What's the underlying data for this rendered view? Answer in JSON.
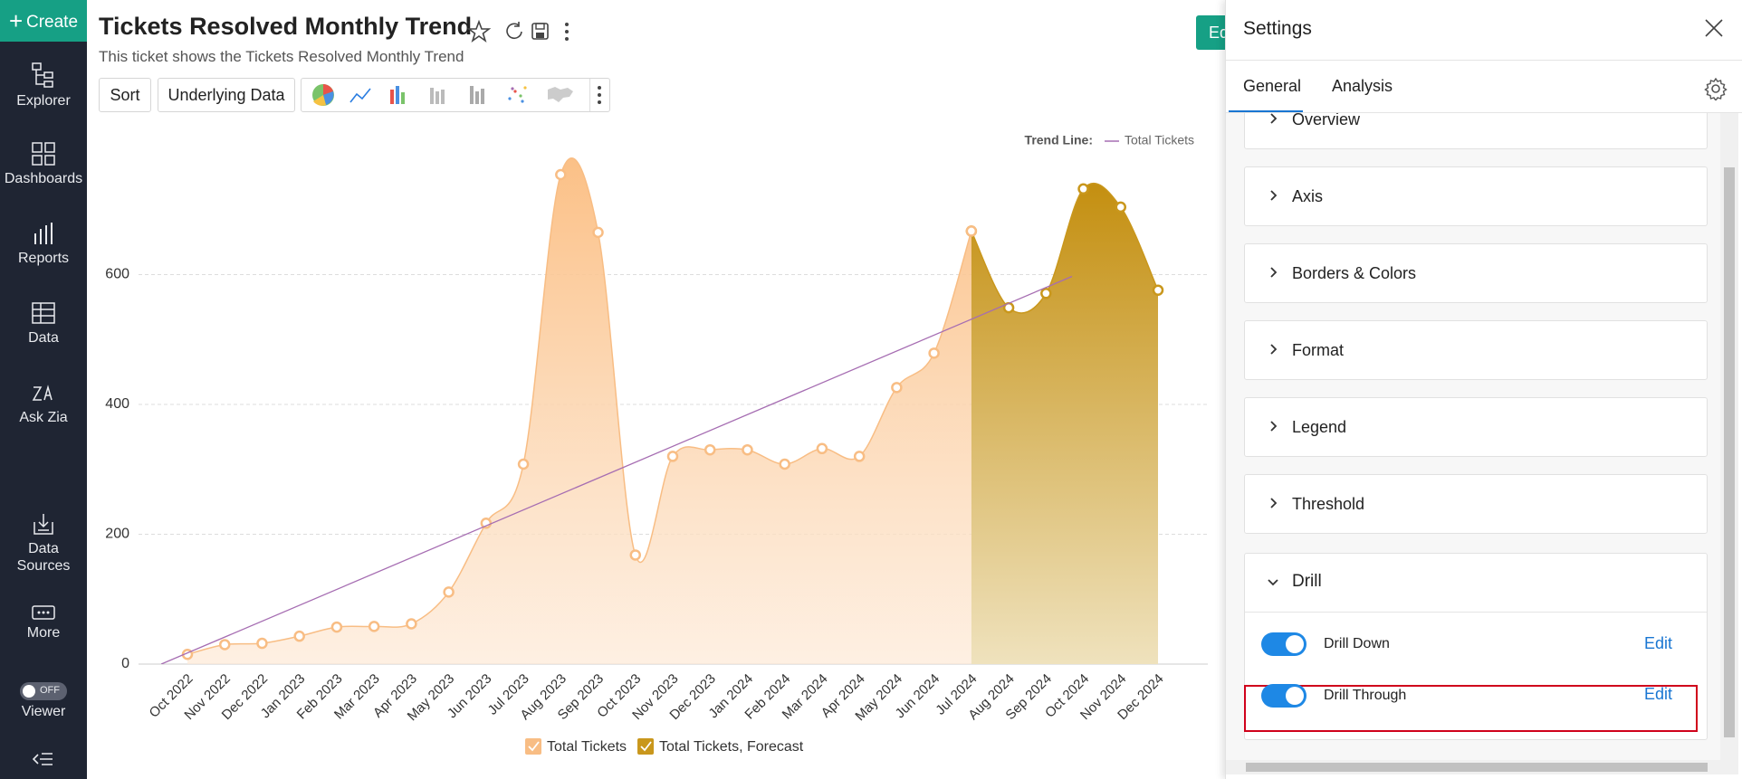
{
  "sidebar": {
    "create": "Create",
    "items": [
      "Explorer",
      "Dashboards",
      "Reports",
      "Data",
      "Ask Zia",
      "Data Sources",
      "More"
    ],
    "toggle": "OFF",
    "viewer": "Viewer"
  },
  "header": {
    "title": "Tickets Resolved Monthly Trend",
    "subtitle": "This ticket shows the Tickets Resolved Monthly Trend",
    "edit": "Ed"
  },
  "toolbar": {
    "sort": "Sort",
    "underlying": "Underlying Data"
  },
  "chart_data": {
    "type": "area",
    "categories": [
      "Oct 2022",
      "Nov 2022",
      "Dec 2022",
      "Jan 2023",
      "Feb 2023",
      "Mar 2023",
      "Apr 2023",
      "May 2023",
      "Jun 2023",
      "Jul 2023",
      "Aug 2023",
      "Sep 2023",
      "Oct 2023",
      "Nov 2023",
      "Dec 2023",
      "Jan 2024",
      "Feb 2024",
      "Mar 2024",
      "Apr 2024",
      "May 2024",
      "Jun 2024",
      "Jul 2024",
      "Aug 2024",
      "Sep 2024",
      "Oct 2024",
      "Nov 2024",
      "Dec 2024"
    ],
    "series": [
      {
        "name": "Total Tickets",
        "color": "#f8bd84",
        "values": [
          15,
          30,
          32,
          43,
          57,
          58,
          62,
          111,
          217,
          308,
          754,
          665,
          168,
          320,
          330,
          330,
          308,
          332,
          320,
          426,
          479,
          667,
          null,
          null,
          null,
          null,
          null
        ]
      },
      {
        "name": "Total Tickets, Forecast",
        "color": "#c9971c",
        "values": [
          null,
          null,
          null,
          null,
          null,
          null,
          null,
          null,
          null,
          null,
          null,
          null,
          null,
          null,
          null,
          null,
          null,
          null,
          null,
          null,
          null,
          667,
          549,
          571,
          732,
          704,
          576
        ]
      }
    ],
    "ylim": [
      0,
      800
    ],
    "yticks": [
      0,
      200,
      400,
      600
    ],
    "grid": true,
    "trend_line": {
      "label": "Trend Line:",
      "name": "Total Tickets",
      "color": "#a66db2"
    }
  },
  "settings": {
    "title": "Settings",
    "tabs": [
      "General",
      "Analysis"
    ],
    "sections": [
      "Overview",
      "Axis",
      "Borders & Colors",
      "Format",
      "Legend",
      "Threshold"
    ],
    "drill": {
      "title": "Drill",
      "options": [
        {
          "label": "Drill Down",
          "action": "Edit"
        },
        {
          "label": "Drill Through",
          "action": "Edit"
        }
      ]
    }
  }
}
